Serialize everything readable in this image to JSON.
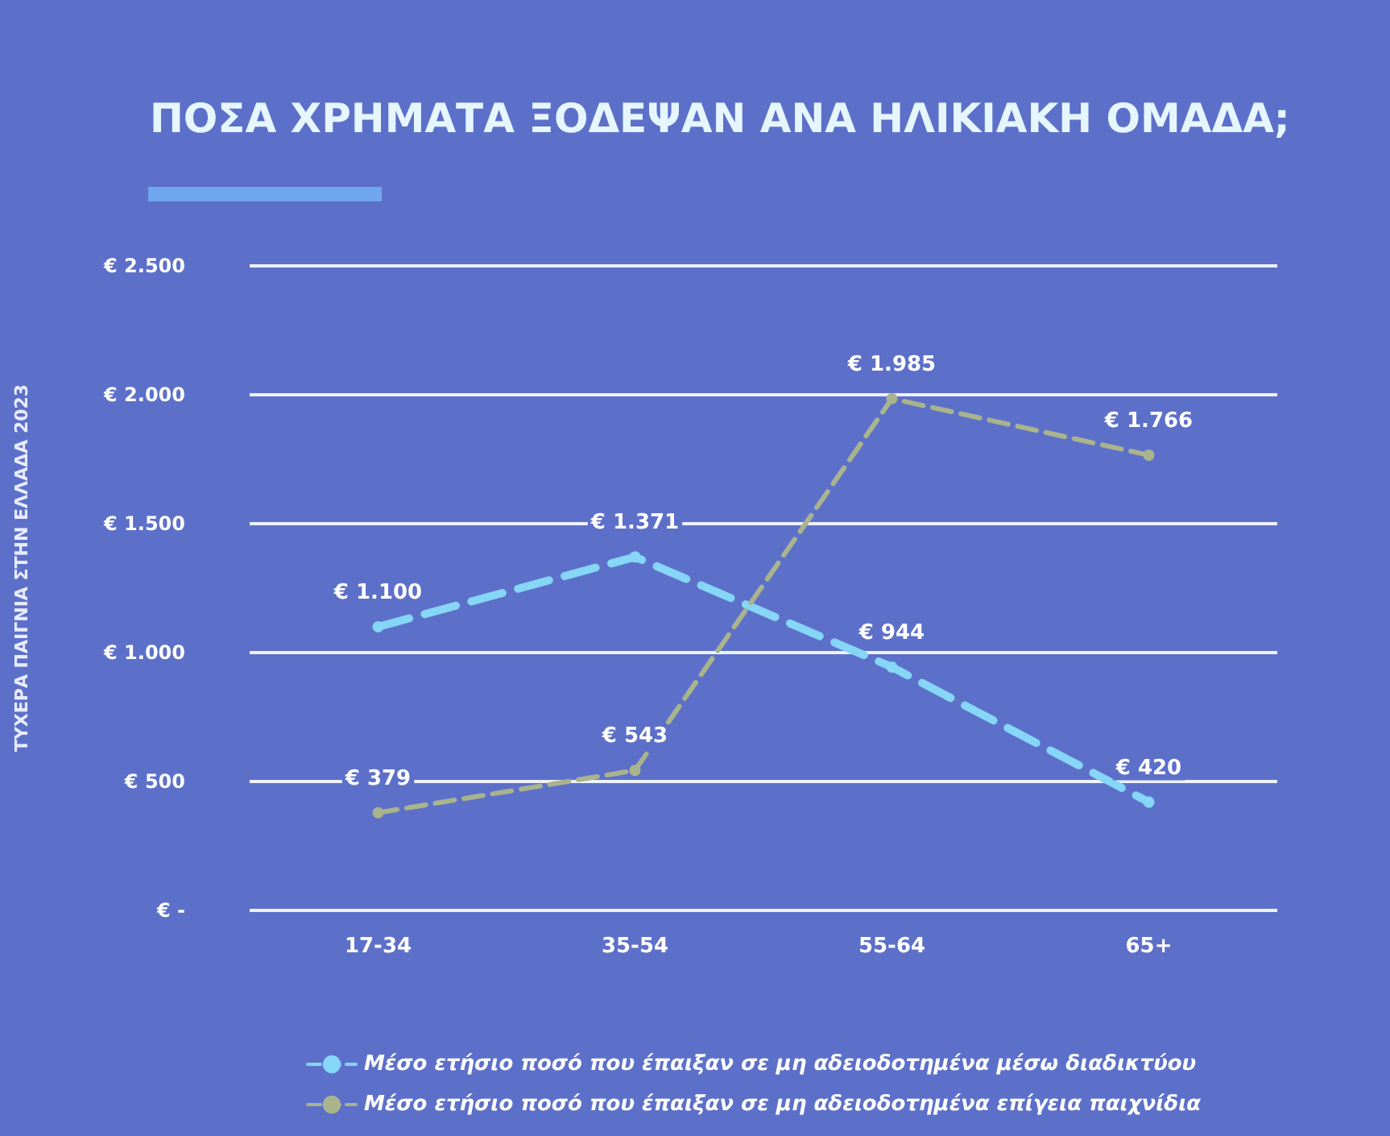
{
  "chart_data": {
    "type": "line",
    "title": "ΠΟΣΑ ΧΡΗΜΑΤΑ ΞΟΔΕΨΑΝ ΑΝΑ ΗΛΙΚΙΑΚΗ ΟΜΑΔΑ;",
    "annotations": [
      "ΤΥΧΕΡΑ ΠΑΙΓΝΙΑ ΣΤΗΝ ΕΛΛΑΔΑ 2023"
    ],
    "categories": [
      "17-34",
      "35-54",
      "55-64",
      "65+"
    ],
    "series": [
      {
        "name": "Μέσο ετήσιο ποσό που έπαιξαν σε μη αδειοδοτημένα μέσω διαδικτύου",
        "color": "#86d6f7",
        "values": [
          1100,
          1371,
          944,
          420
        ],
        "value_labels": [
          "€ 1.100",
          "€ 1.371",
          "€ 944",
          "€ 420"
        ]
      },
      {
        "name": "Μέσο ετήσιο ποσό που έπαιξαν σε μη αδειοδοτημένα επίγεια παιχνίδια",
        "color": "#a9b48c",
        "values": [
          379,
          543,
          1985,
          1766
        ],
        "value_labels": [
          "€ 379",
          "€ 543",
          "€ 1.985",
          "€ 1.766"
        ]
      }
    ],
    "ylim": [
      0,
      2500
    ],
    "yticks": [
      {
        "value": 0,
        "label": "€ -"
      },
      {
        "value": 500,
        "label": "€ 500"
      },
      {
        "value": 1000,
        "label": "€ 1.000"
      },
      {
        "value": 1500,
        "label": "€ 1.500"
      },
      {
        "value": 2000,
        "label": "€ 2.000"
      },
      {
        "value": 2500,
        "label": "€ 2.500"
      }
    ],
    "grid": "y",
    "legend": "bottom",
    "marker": "circle",
    "line_style": "dashed"
  }
}
